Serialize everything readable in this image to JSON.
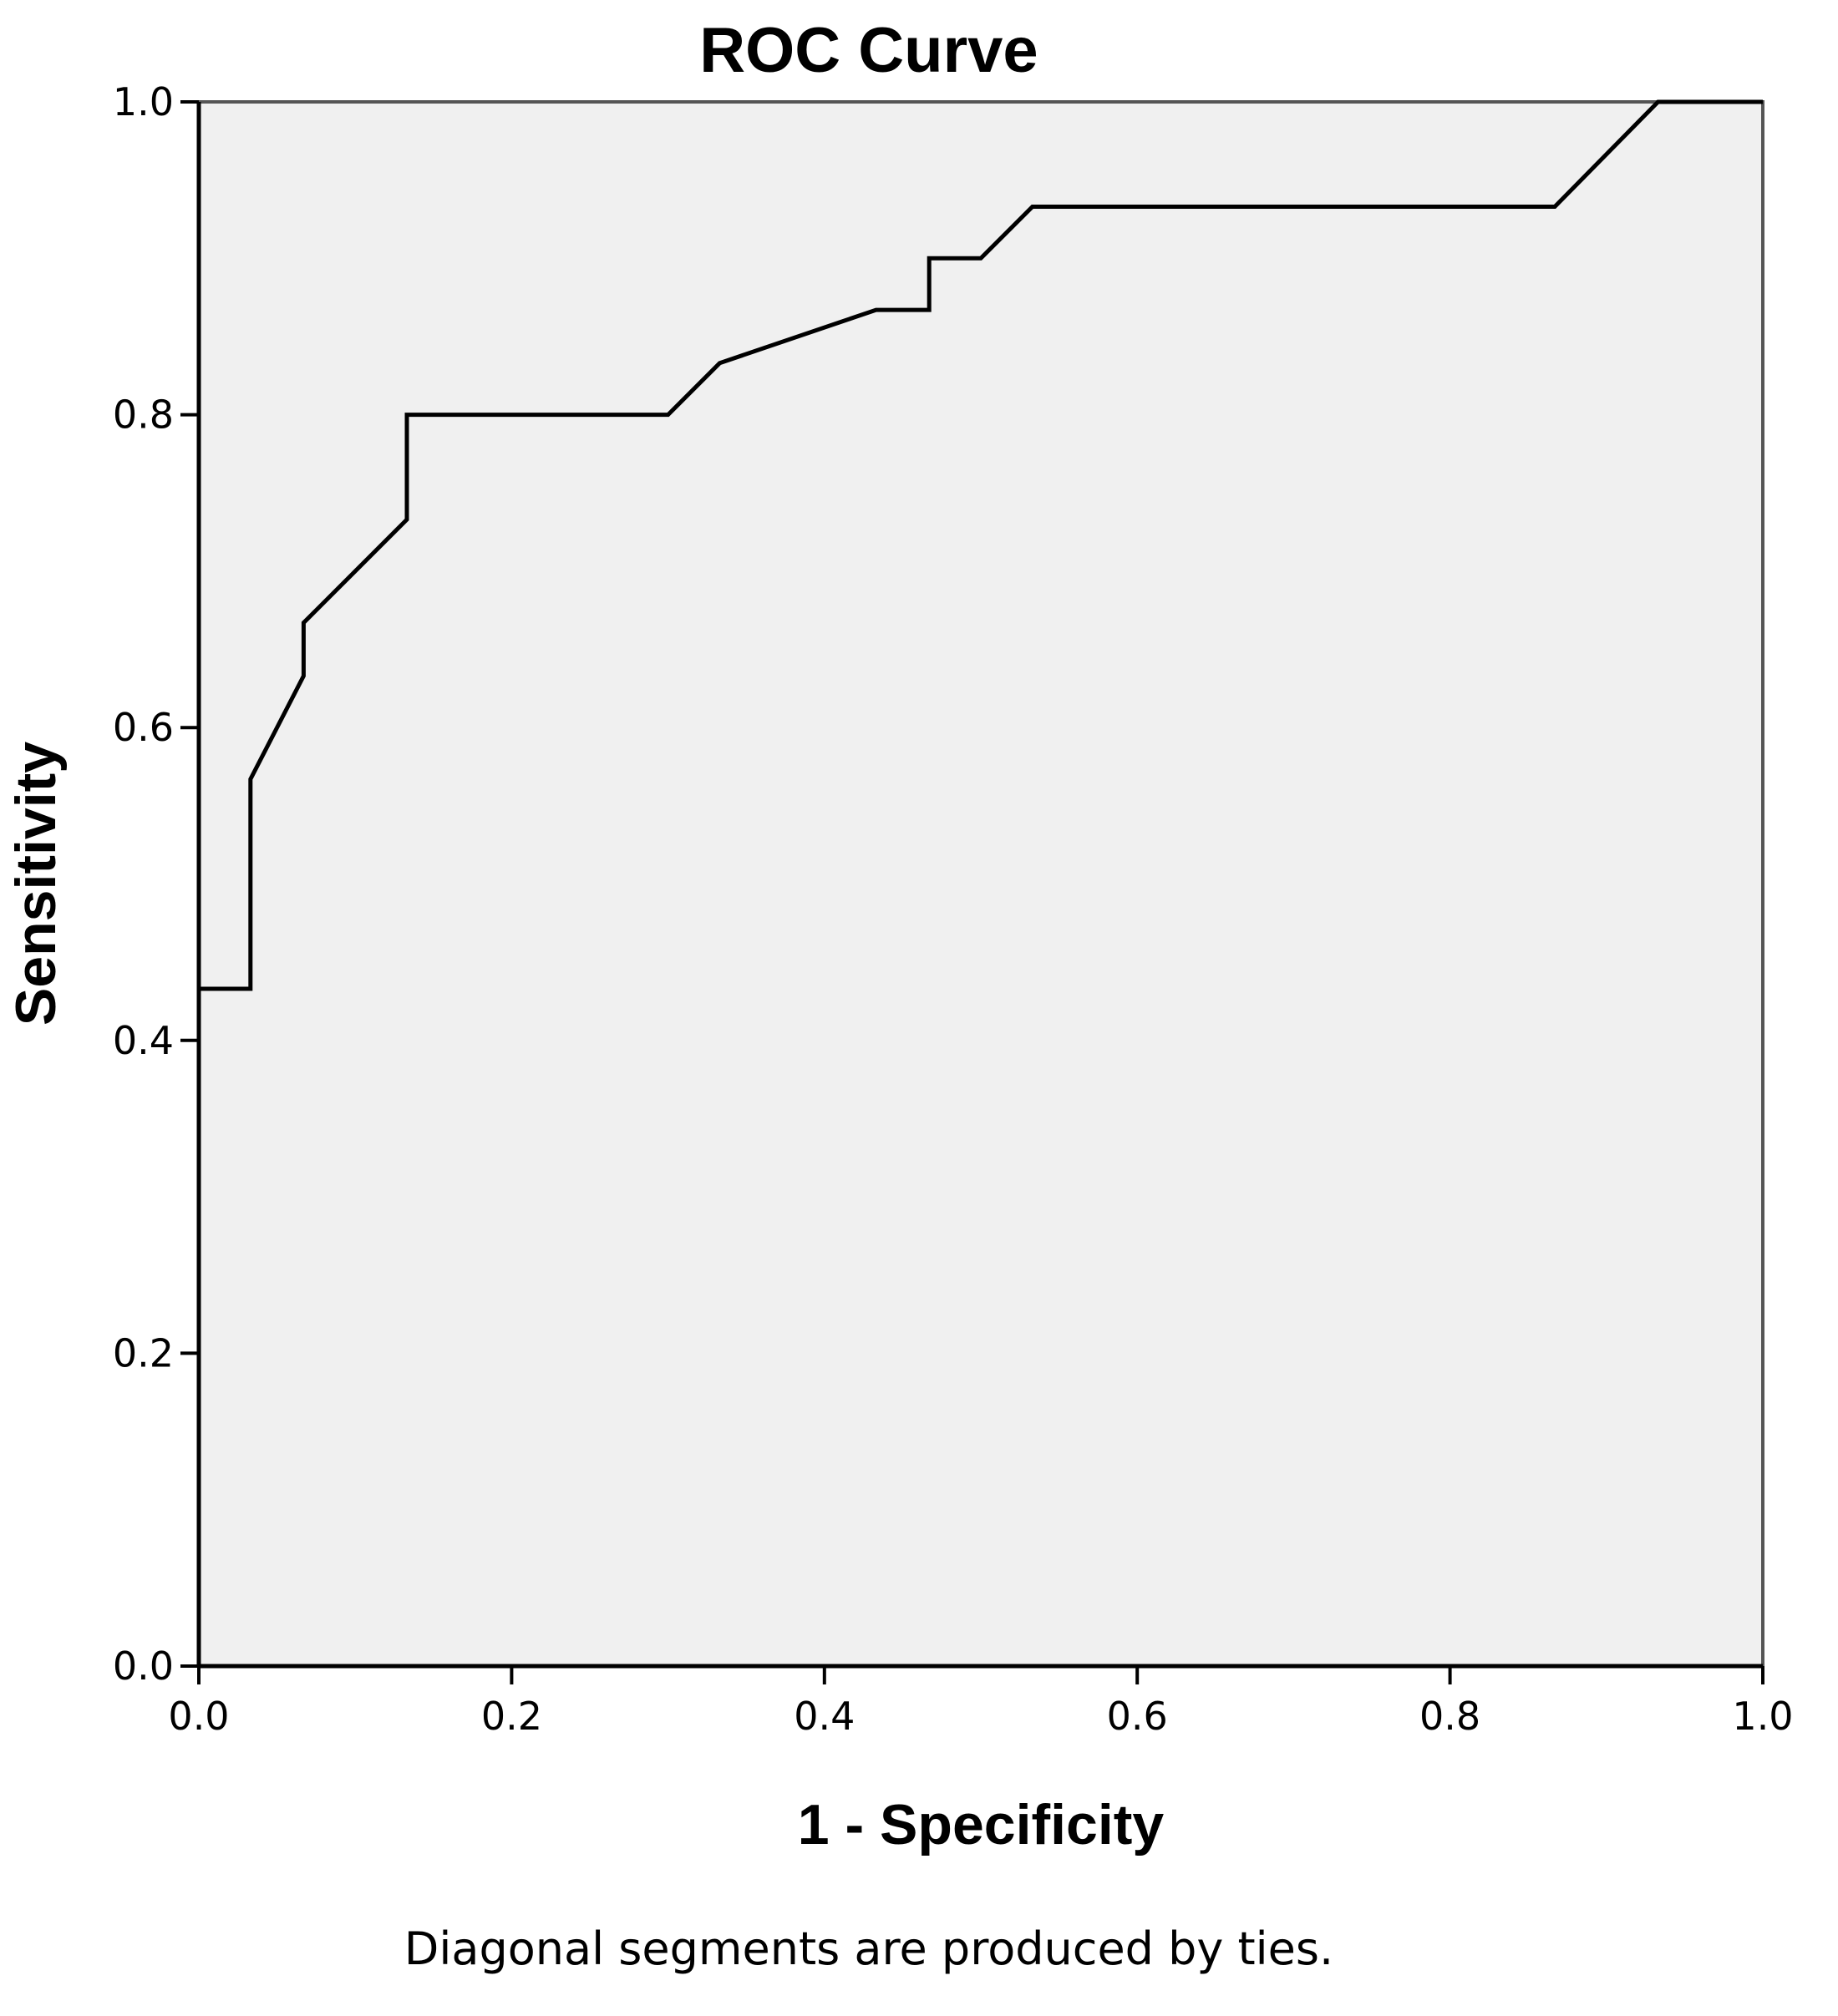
{
  "chart_data": {
    "type": "line",
    "title": "ROC Curve",
    "xlabel": "1 - Specificity",
    "ylabel": "Sensitivity",
    "xlim": [
      0,
      1
    ],
    "ylim": [
      0,
      1
    ],
    "x_ticks": [
      "0.0",
      "0.2",
      "0.4",
      "0.6",
      "0.8",
      "1.0"
    ],
    "y_ticks": [
      "0.0",
      "0.2",
      "0.4",
      "0.6",
      "0.8",
      "1.0"
    ],
    "grid": false,
    "footnote": "Diagonal segments are produced by ties.",
    "plot_background": "#f0f0f0",
    "line_color": "#000000",
    "series": [
      {
        "x": [
          0,
          0,
          0.033,
          0.033,
          0.067,
          0.067,
          0.133,
          0.133,
          0.3,
          0.333,
          0.433,
          0.467,
          0.467,
          0.5,
          0.533,
          0.867,
          0.933,
          1.0
        ],
        "y": [
          0,
          0.433,
          0.433,
          0.567,
          0.633,
          0.667,
          0.733,
          0.8,
          0.8,
          0.833,
          0.867,
          0.867,
          0.9,
          0.9,
          0.933,
          0.933,
          1.0,
          1.0
        ]
      }
    ]
  }
}
